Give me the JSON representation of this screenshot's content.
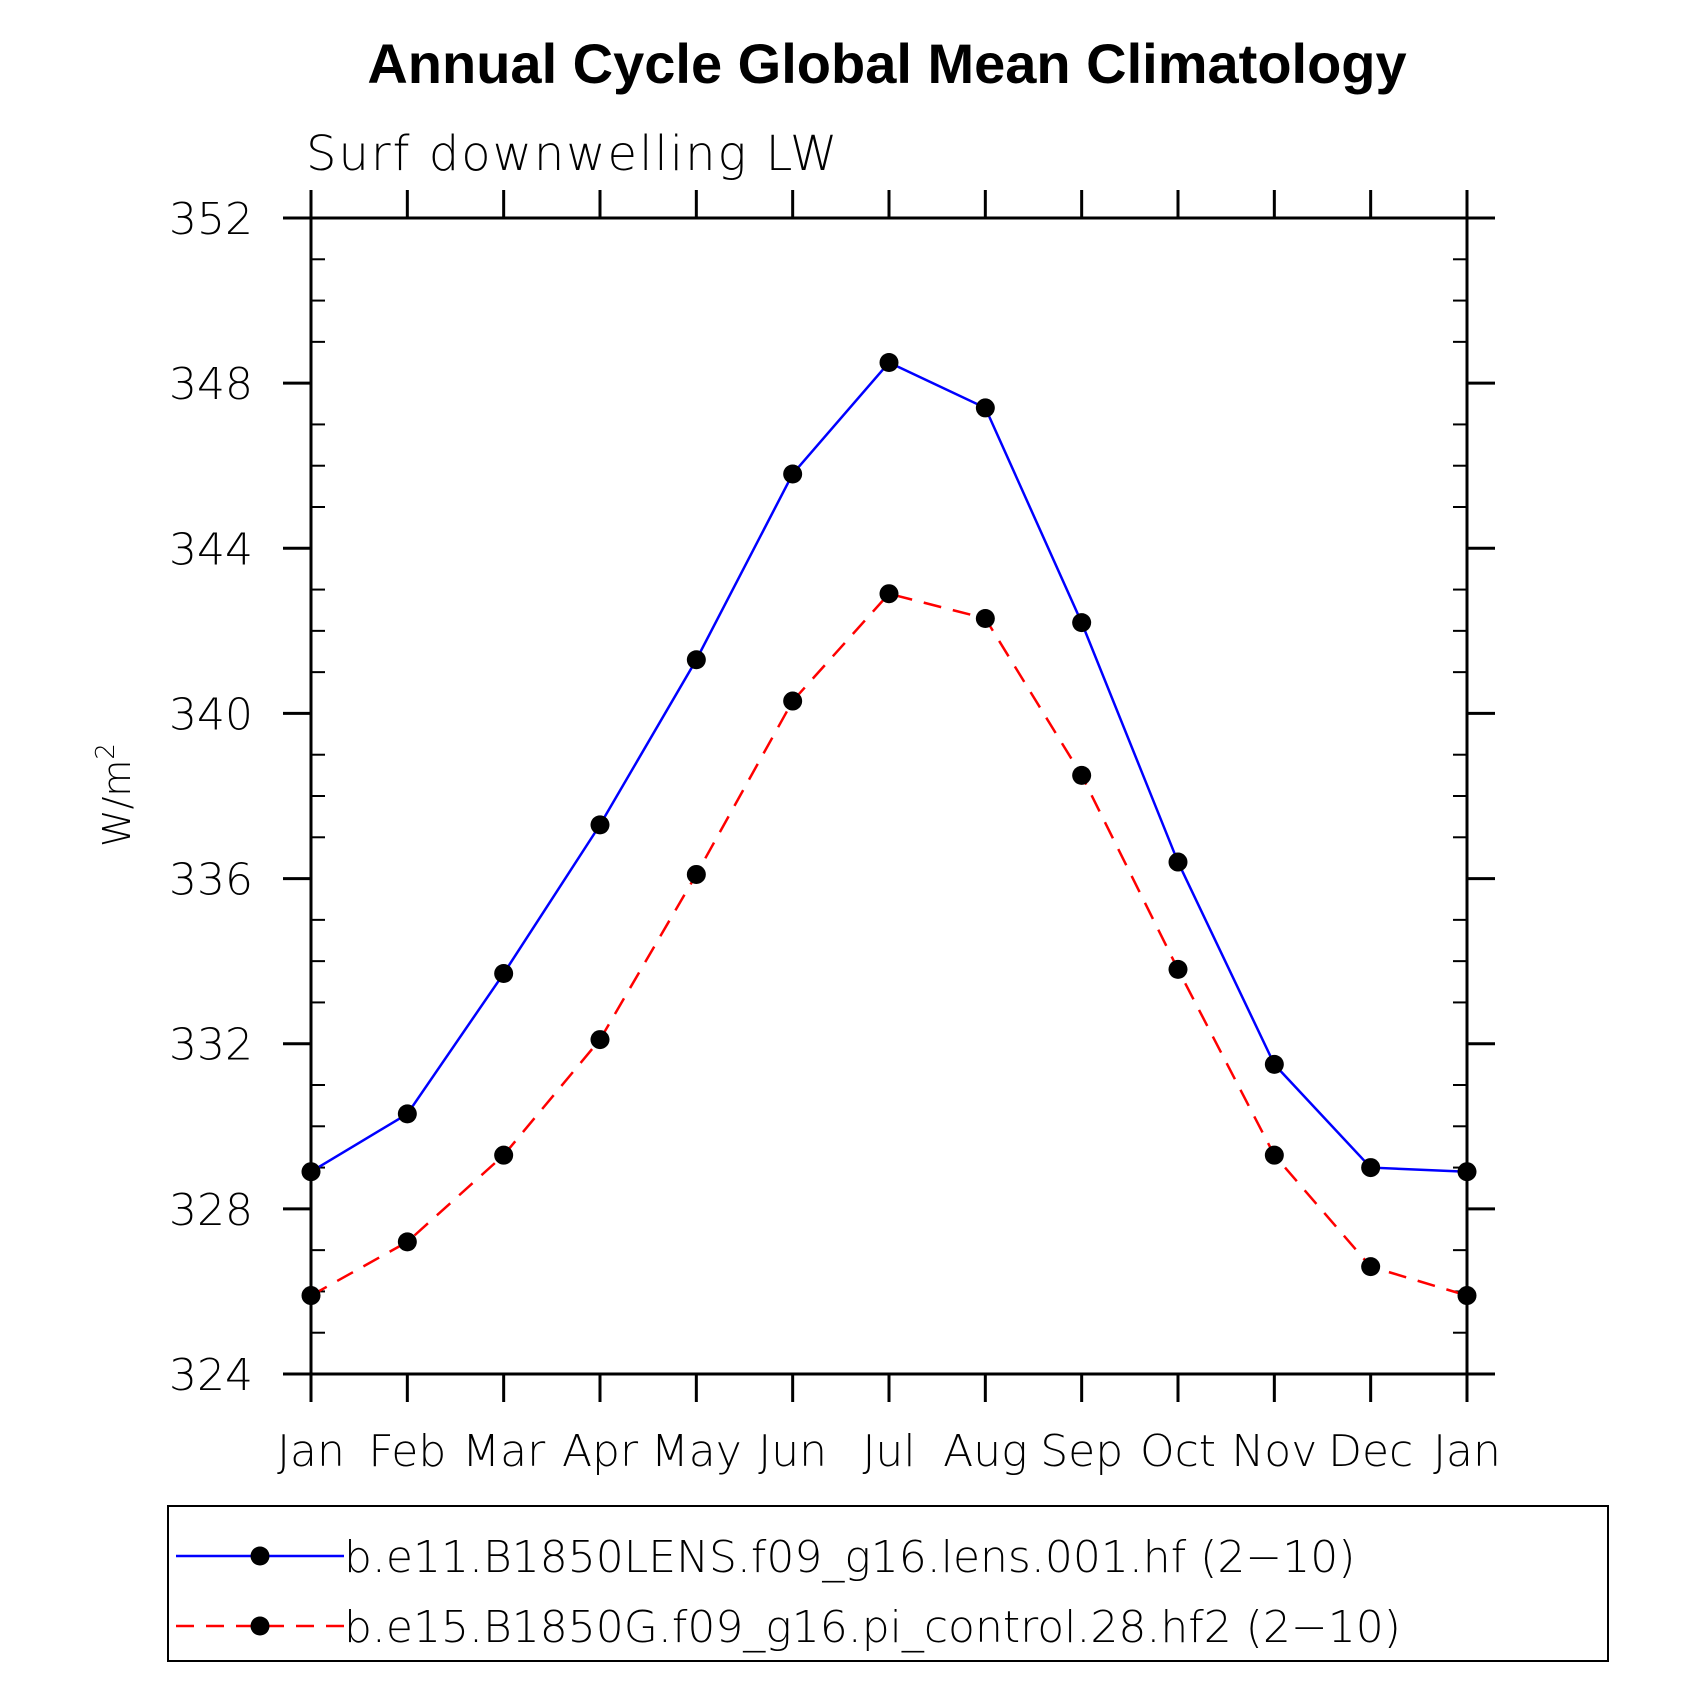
{
  "chart_data": {
    "type": "line",
    "title": "Annual Cycle Global Mean Climatology",
    "subtitle": "Surf downwelling LW",
    "ylabel": "W/m",
    "ylabel_superscript": "2",
    "xlabel": "",
    "categories": [
      "Jan",
      "Feb",
      "Mar",
      "Apr",
      "May",
      "Jun",
      "Jul",
      "Aug",
      "Sep",
      "Oct",
      "Nov",
      "Dec",
      "Jan"
    ],
    "ylim": [
      324,
      352
    ],
    "yticks": [
      324,
      328,
      332,
      336,
      340,
      344,
      348,
      352
    ],
    "ytick_labels": [
      "324",
      "328",
      "332",
      "336",
      "340",
      "344",
      "348",
      "352"
    ],
    "grid": false,
    "legend_position": "bottom",
    "series": [
      {
        "name": "b.e11.B1850LENS.f09_g16.lens.001.hf (2−10)",
        "color": "#0000ff",
        "dash": "solid",
        "marker": "circle",
        "values": [
          328.9,
          330.3,
          333.7,
          337.3,
          341.3,
          345.8,
          348.5,
          347.4,
          342.2,
          336.4,
          331.5,
          329.0,
          328.9
        ]
      },
      {
        "name": "b.e15.B1850G.f09_g16.pi_control.28.hf2 (2−10)",
        "color": "#ff0000",
        "dash": "dashed",
        "marker": "circle",
        "values": [
          325.9,
          327.2,
          329.3,
          332.1,
          336.1,
          340.3,
          342.9,
          342.3,
          338.5,
          333.8,
          329.3,
          326.6,
          325.9
        ]
      }
    ]
  }
}
